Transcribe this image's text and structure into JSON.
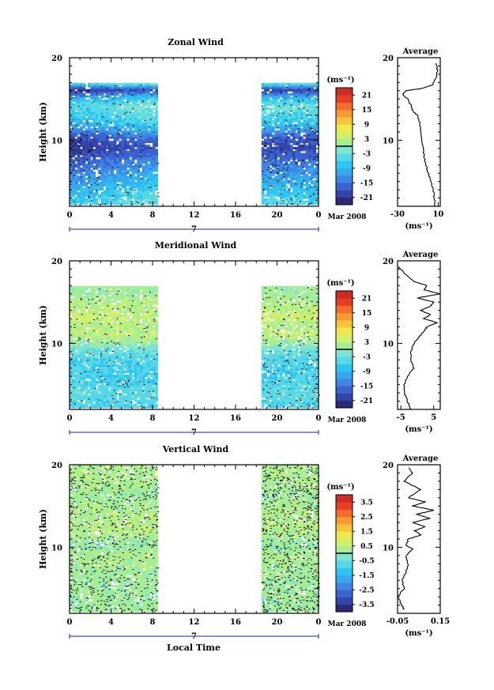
{
  "panels": [
    {
      "title": "Zonal Wind",
      "ylabel": "Height (km)",
      "yticks": [
        "20",
        "10"
      ],
      "xticks": [
        "0",
        "4",
        "8",
        "12",
        "16",
        "20",
        "0"
      ],
      "date_label": "7",
      "month_label": "Mar 2008",
      "colorbar_unit": "(ms⁻¹)",
      "colorbar_ticks": [
        "21",
        "15",
        "9",
        "3",
        "-3",
        "-9",
        "-15",
        "-21"
      ],
      "avg_title": "Average",
      "avg_yticks": [
        "20",
        "10"
      ],
      "avg_xticks": [
        "-30",
        "10"
      ],
      "avg_xunit": "(ms⁻¹)"
    },
    {
      "title": "Meridional Wind",
      "ylabel": "Height (km)",
      "yticks": [
        "20",
        "10"
      ],
      "xticks": [
        "0",
        "4",
        "8",
        "12",
        "16",
        "20",
        "0"
      ],
      "date_label": "7",
      "month_label": "Mar 2008",
      "colorbar_unit": "(ms⁻¹)",
      "colorbar_ticks": [
        "21",
        "15",
        "9",
        "3",
        "-3",
        "-9",
        "-15",
        "-21"
      ],
      "avg_title": "Average",
      "avg_yticks": [
        "20",
        "10"
      ],
      "avg_xticks": [
        "-5",
        "5"
      ],
      "avg_xunit": "(ms⁻¹)"
    },
    {
      "title": "Vertical Wind",
      "ylabel": "Height (km)",
      "yticks": [
        "20",
        "10"
      ],
      "xticks": [
        "0",
        "4",
        "8",
        "12",
        "16",
        "20",
        "0"
      ],
      "date_label": "7",
      "month_label": "Mar 2008",
      "colorbar_unit": "(ms⁻¹)",
      "colorbar_ticks": [
        "3.5",
        "2.5",
        "1.5",
        "0.5",
        "-0.5",
        "-1.5",
        "-2.5",
        "-3.5"
      ],
      "avg_title": "Average",
      "avg_yticks": [
        "20",
        "10"
      ],
      "avg_xticks": [
        "-0.05",
        "0.15"
      ],
      "avg_xunit": "(ms⁻¹)"
    }
  ],
  "xlabel": "Local Time",
  "chart_data": [
    {
      "type": "heatmap",
      "title": "Zonal Wind",
      "xlabel": "",
      "ylabel": "Height (km)",
      "xlim": [
        0,
        24
      ],
      "ylim": [
        2,
        20
      ],
      "color_units": "(ms⁻¹)",
      "color_levels": [
        -24,
        -21,
        -18,
        -15,
        -12,
        -9,
        -6,
        -3,
        0,
        3,
        6,
        9,
        12,
        15,
        18,
        21,
        24
      ],
      "data_intervals_hours": [
        [
          0,
          8.5
        ],
        [
          18.5,
          24
        ]
      ],
      "profile_by_height_km": [
        {
          "z": 2.5,
          "v": -5
        },
        {
          "z": 3,
          "v": -6
        },
        {
          "z": 4,
          "v": -8
        },
        {
          "z": 5,
          "v": -10
        },
        {
          "z": 6,
          "v": -12
        },
        {
          "z": 7,
          "v": -14
        },
        {
          "z": 8,
          "v": -17
        },
        {
          "z": 9,
          "v": -19
        },
        {
          "z": 10,
          "v": -18
        },
        {
          "z": 11,
          "v": -12
        },
        {
          "z": 12,
          "v": -7
        },
        {
          "z": 13,
          "v": -5
        },
        {
          "z": 14,
          "v": -3
        },
        {
          "z": 15,
          "v": -8
        },
        {
          "z": 16,
          "v": -20
        },
        {
          "z": 17,
          "v": 2
        }
      ]
    },
    {
      "type": "line",
      "title": "Average",
      "series": [
        {
          "x": [
            7,
            6,
            5,
            3,
            0,
            -2,
            -4,
            -5,
            -6,
            -7,
            -8,
            -10,
            -15,
            -16,
            -20,
            -25,
            -22,
            -5,
            4,
            8,
            9,
            8
          ],
          "y": [
            2.0,
            3.0,
            4.0,
            5.0,
            6.0,
            7.0,
            8.0,
            9.0,
            10.0,
            11.0,
            12.0,
            13.0,
            13.5,
            14.0,
            15.0,
            15.5,
            16.0,
            16.3,
            16.7,
            17.5,
            18.5,
            19.5
          ]
        }
      ],
      "xlim": [
        -30,
        12
      ],
      "ylim": [
        2,
        20
      ],
      "xlabel": "(ms⁻¹)"
    },
    {
      "type": "heatmap",
      "title": "Meridional Wind",
      "xlabel": "",
      "ylabel": "Height (km)",
      "xlim": [
        0,
        24
      ],
      "ylim": [
        2,
        20
      ],
      "color_units": "(ms⁻¹)",
      "color_levels": [
        -24,
        -21,
        -18,
        -15,
        -12,
        -9,
        -6,
        -3,
        0,
        3,
        6,
        9,
        12,
        15,
        18,
        21,
        24
      ],
      "data_intervals_hours": [
        [
          0,
          8.5
        ],
        [
          18.5,
          24
        ]
      ],
      "profile_by_height_km": [
        {
          "z": 2.5,
          "v": -5
        },
        {
          "z": 4,
          "v": -4
        },
        {
          "z": 6,
          "v": -6
        },
        {
          "z": 8,
          "v": -5
        },
        {
          "z": 9,
          "v": -3
        },
        {
          "z": 10,
          "v": 1
        },
        {
          "z": 11,
          "v": 3
        },
        {
          "z": 12,
          "v": 2
        },
        {
          "z": 13,
          "v": 4
        },
        {
          "z": 14,
          "v": 3
        },
        {
          "z": 15,
          "v": 2
        },
        {
          "z": 16,
          "v": 1
        }
      ]
    },
    {
      "type": "line",
      "title": "Average",
      "series": [
        {
          "x": [
            -2,
            -3,
            -4,
            -4,
            -3,
            -1,
            -2,
            -2,
            -1,
            1,
            2,
            3,
            6,
            2,
            4,
            1,
            4,
            5,
            0,
            7,
            2,
            3,
            -1,
            -4,
            -6
          ],
          "y": [
            2.0,
            3.0,
            4.0,
            5.0,
            6.0,
            7.0,
            8.0,
            9.0,
            10.0,
            11.0,
            11.5,
            12.0,
            12.5,
            13.0,
            13.5,
            14.0,
            14.5,
            15.0,
            15.5,
            16.0,
            16.5,
            17.0,
            17.5,
            18.5,
            19.5
          ]
        }
      ],
      "xlim": [
        -6,
        7
      ],
      "ylim": [
        2,
        20
      ],
      "xlabel": "(ms⁻¹)"
    },
    {
      "type": "heatmap",
      "title": "Vertical Wind",
      "xlabel": "Local Time",
      "ylabel": "Height (km)",
      "xlim": [
        0,
        24
      ],
      "ylim": [
        2,
        20
      ],
      "color_units": "(ms⁻¹)",
      "color_levels": [
        -4,
        -3.5,
        -3,
        -2.5,
        -2,
        -1.5,
        -1,
        -0.5,
        0,
        0.5,
        1,
        1.5,
        2,
        2.5,
        3,
        3.5,
        4
      ],
      "data_intervals_hours": [
        [
          0,
          8.5
        ],
        [
          18.5,
          24
        ]
      ],
      "profile_by_height_km": [
        {
          "z": 3,
          "v": 0.2
        },
        {
          "z": 6,
          "v": 0.2
        },
        {
          "z": 9,
          "v": 0.3
        },
        {
          "z": 10,
          "v": 0.1
        },
        {
          "z": 12,
          "v": 0.4
        },
        {
          "z": 14,
          "v": 0.3
        },
        {
          "z": 16,
          "v": 0.2
        },
        {
          "z": 18,
          "v": 0.3
        }
      ]
    },
    {
      "type": "line",
      "title": "Average",
      "series": [
        {
          "x": [
            -0.02,
            -0.03,
            -0.05,
            -0.02,
            -0.03,
            -0.01,
            0.0,
            -0.01,
            0.02,
            -0.01,
            0.0,
            0.06,
            0.03,
            0.08,
            0.02,
            0.1,
            0.04,
            0.12,
            0.02,
            0.08,
            0.0,
            0.06,
            -0.02,
            0.02,
            0.0
          ],
          "y": [
            2.5,
            3.0,
            4.0,
            5.0,
            6.0,
            7.0,
            8.0,
            9.0,
            9.8,
            10.2,
            11.0,
            11.5,
            12.0,
            12.5,
            13.0,
            13.5,
            14.0,
            14.5,
            15.0,
            15.5,
            16.0,
            17.0,
            18.0,
            19.0,
            19.8
          ]
        }
      ],
      "xlim": [
        -0.05,
        0.15
      ],
      "ylim": [
        2,
        20
      ],
      "xlabel": "(ms⁻¹)"
    }
  ]
}
